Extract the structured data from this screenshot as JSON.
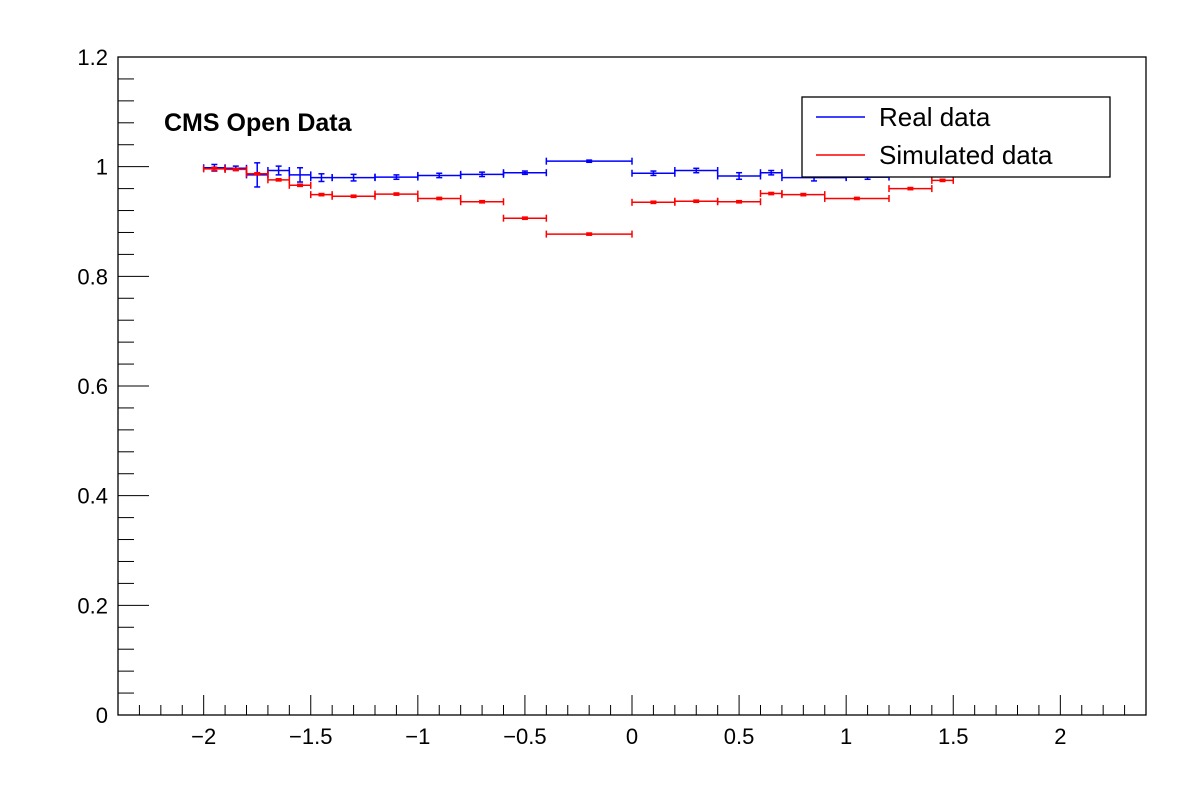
{
  "chart_data": {
    "type": "scatter",
    "title": "CMS Open Data",
    "xlabel": "",
    "ylabel": "",
    "xlim": [
      -2.4,
      2.4
    ],
    "ylim": [
      0,
      1.2
    ],
    "x_ticks": [
      -2,
      -1.5,
      -1,
      -0.5,
      0,
      0.5,
      1,
      1.5,
      2
    ],
    "x_tick_labels": [
      "−2",
      "−1.5",
      "−1",
      "−0.5",
      "0",
      "0.5",
      "1",
      "1.5",
      "2"
    ],
    "y_ticks": [
      0,
      0.2,
      0.4,
      0.6,
      0.8,
      1,
      1.2
    ],
    "y_tick_labels": [
      "0",
      "0.2",
      "0.4",
      "0.6",
      "0.8",
      "1",
      "1.2"
    ],
    "grid": false,
    "legend": {
      "position": "top-right",
      "entries": [
        "Real data",
        "Simulated data"
      ]
    },
    "series": [
      {
        "name": "Real data",
        "color": "#0000ff",
        "points": [
          {
            "xlo": -2.0,
            "xhi": -1.9,
            "y": 0.998,
            "err": 0.006
          },
          {
            "xlo": -1.9,
            "xhi": -1.8,
            "y": 0.997,
            "err": 0.004
          },
          {
            "xlo": -1.8,
            "xhi": -1.7,
            "y": 0.985,
            "err": 0.022
          },
          {
            "xlo": -1.7,
            "xhi": -1.6,
            "y": 0.993,
            "err": 0.008
          },
          {
            "xlo": -1.6,
            "xhi": -1.5,
            "y": 0.985,
            "err": 0.013
          },
          {
            "xlo": -1.5,
            "xhi": -1.4,
            "y": 0.98,
            "err": 0.007
          },
          {
            "xlo": -1.4,
            "xhi": -1.2,
            "y": 0.98,
            "err": 0.006
          },
          {
            "xlo": -1.2,
            "xhi": -1.0,
            "y": 0.981,
            "err": 0.004
          },
          {
            "xlo": -1.0,
            "xhi": -0.8,
            "y": 0.984,
            "err": 0.004
          },
          {
            "xlo": -0.8,
            "xhi": -0.6,
            "y": 0.986,
            "err": 0.004
          },
          {
            "xlo": -0.6,
            "xhi": -0.4,
            "y": 0.989,
            "err": 0.003
          },
          {
            "xlo": -0.4,
            "xhi": 0.0,
            "y": 1.01,
            "err": 0.002
          },
          {
            "xlo": 0.0,
            "xhi": 0.2,
            "y": 0.988,
            "err": 0.004
          },
          {
            "xlo": 0.2,
            "xhi": 0.4,
            "y": 0.993,
            "err": 0.004
          },
          {
            "xlo": 0.4,
            "xhi": 0.6,
            "y": 0.983,
            "err": 0.006
          },
          {
            "xlo": 0.6,
            "xhi": 0.7,
            "y": 0.989,
            "err": 0.004
          },
          {
            "xlo": 0.7,
            "xhi": 1.0,
            "y": 0.98,
            "err": 0.006
          },
          {
            "xlo": 1.0,
            "xhi": 1.2,
            "y": 0.981,
            "err": 0.004
          }
        ]
      },
      {
        "name": "Simulated data",
        "color": "#ff0000",
        "points": [
          {
            "xlo": -2.0,
            "xhi": -1.9,
            "y": 0.996,
            "err": 0.003
          },
          {
            "xlo": -1.9,
            "xhi": -1.8,
            "y": 0.995,
            "err": 0.002
          },
          {
            "xlo": -1.8,
            "xhi": -1.7,
            "y": 0.987,
            "err": 0.002
          },
          {
            "xlo": -1.7,
            "xhi": -1.6,
            "y": 0.976,
            "err": 0.002
          },
          {
            "xlo": -1.6,
            "xhi": -1.5,
            "y": 0.966,
            "err": 0.002
          },
          {
            "xlo": -1.5,
            "xhi": -1.4,
            "y": 0.949,
            "err": 0.002
          },
          {
            "xlo": -1.4,
            "xhi": -1.2,
            "y": 0.946,
            "err": 0.002
          },
          {
            "xlo": -1.2,
            "xhi": -1.0,
            "y": 0.95,
            "err": 0.002
          },
          {
            "xlo": -1.0,
            "xhi": -0.8,
            "y": 0.942,
            "err": 0.002
          },
          {
            "xlo": -0.8,
            "xhi": -0.6,
            "y": 0.936,
            "err": 0.002
          },
          {
            "xlo": -0.6,
            "xhi": -0.4,
            "y": 0.906,
            "err": 0.002
          },
          {
            "xlo": -0.4,
            "xhi": 0.0,
            "y": 0.877,
            "err": 0.002
          },
          {
            "xlo": 0.0,
            "xhi": 0.2,
            "y": 0.935,
            "err": 0.002
          },
          {
            "xlo": 0.2,
            "xhi": 0.4,
            "y": 0.937,
            "err": 0.002
          },
          {
            "xlo": 0.4,
            "xhi": 0.6,
            "y": 0.936,
            "err": 0.002
          },
          {
            "xlo": 0.6,
            "xhi": 0.7,
            "y": 0.951,
            "err": 0.002
          },
          {
            "xlo": 0.7,
            "xhi": 0.9,
            "y": 0.949,
            "err": 0.002
          },
          {
            "xlo": 0.9,
            "xhi": 1.2,
            "y": 0.942,
            "err": 0.002
          },
          {
            "xlo": 1.2,
            "xhi": 1.4,
            "y": 0.96,
            "err": 0.002
          },
          {
            "xlo": 1.4,
            "xhi": 1.5,
            "y": 0.975,
            "err": 0.002
          }
        ]
      }
    ]
  }
}
